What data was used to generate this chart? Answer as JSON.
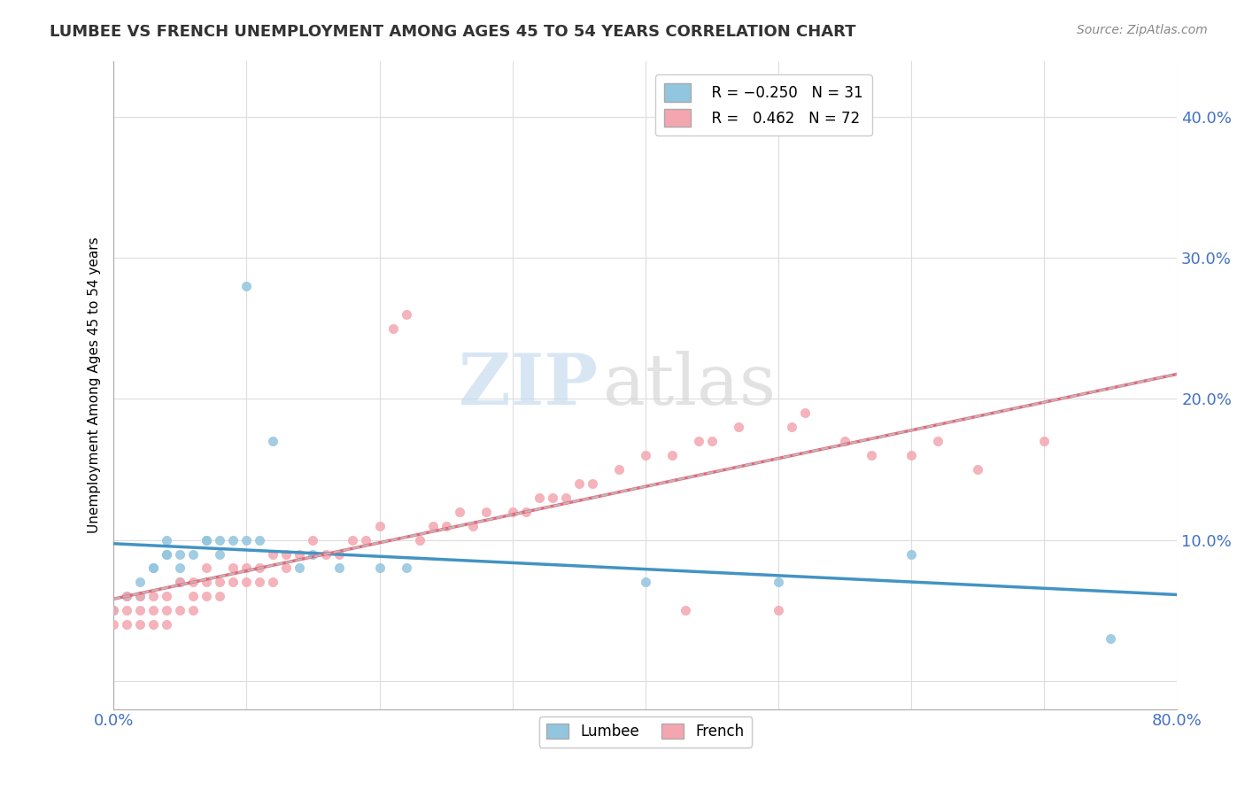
{
  "title": "LUMBEE VS FRENCH UNEMPLOYMENT AMONG AGES 45 TO 54 YEARS CORRELATION CHART",
  "source": "Source: ZipAtlas.com",
  "xlabel": "",
  "ylabel": "Unemployment Among Ages 45 to 54 years",
  "xlim": [
    0,
    0.8
  ],
  "ylim": [
    -0.02,
    0.44
  ],
  "xticks": [
    0.0,
    0.1,
    0.2,
    0.3,
    0.4,
    0.5,
    0.6,
    0.7,
    0.8
  ],
  "yticks": [
    0.0,
    0.1,
    0.2,
    0.3,
    0.4
  ],
  "lumbee_R": -0.25,
  "lumbee_N": 31,
  "french_R": 0.462,
  "french_N": 72,
  "lumbee_color": "#92C5DE",
  "french_color": "#F4A6B0",
  "lumbee_line_color": "#4393C3",
  "french_line_color": "#E8667A",
  "dashed_line_color": "#BBBBBB",
  "lumbee_x": [
    0.0,
    0.01,
    0.02,
    0.02,
    0.03,
    0.03,
    0.04,
    0.04,
    0.04,
    0.05,
    0.05,
    0.05,
    0.06,
    0.07,
    0.07,
    0.08,
    0.08,
    0.09,
    0.1,
    0.1,
    0.11,
    0.12,
    0.14,
    0.15,
    0.17,
    0.2,
    0.22,
    0.4,
    0.5,
    0.6,
    0.75
  ],
  "lumbee_y": [
    0.05,
    0.06,
    0.06,
    0.07,
    0.08,
    0.08,
    0.09,
    0.09,
    0.1,
    0.07,
    0.08,
    0.09,
    0.09,
    0.1,
    0.1,
    0.09,
    0.1,
    0.1,
    0.1,
    0.28,
    0.1,
    0.17,
    0.08,
    0.09,
    0.08,
    0.08,
    0.08,
    0.07,
    0.07,
    0.09,
    0.03
  ],
  "french_x": [
    0.0,
    0.0,
    0.01,
    0.01,
    0.01,
    0.02,
    0.02,
    0.02,
    0.03,
    0.03,
    0.03,
    0.04,
    0.04,
    0.04,
    0.05,
    0.05,
    0.06,
    0.06,
    0.06,
    0.07,
    0.07,
    0.07,
    0.08,
    0.08,
    0.09,
    0.09,
    0.1,
    0.1,
    0.11,
    0.11,
    0.12,
    0.12,
    0.13,
    0.13,
    0.14,
    0.15,
    0.16,
    0.17,
    0.18,
    0.19,
    0.2,
    0.21,
    0.22,
    0.23,
    0.24,
    0.25,
    0.26,
    0.27,
    0.28,
    0.3,
    0.31,
    0.32,
    0.33,
    0.34,
    0.35,
    0.36,
    0.38,
    0.4,
    0.42,
    0.43,
    0.44,
    0.45,
    0.47,
    0.5,
    0.51,
    0.52,
    0.55,
    0.57,
    0.6,
    0.62,
    0.65,
    0.7
  ],
  "french_y": [
    0.04,
    0.05,
    0.04,
    0.05,
    0.06,
    0.04,
    0.05,
    0.06,
    0.04,
    0.05,
    0.06,
    0.04,
    0.05,
    0.06,
    0.05,
    0.07,
    0.05,
    0.06,
    0.07,
    0.06,
    0.07,
    0.08,
    0.06,
    0.07,
    0.07,
    0.08,
    0.07,
    0.08,
    0.07,
    0.08,
    0.07,
    0.09,
    0.08,
    0.09,
    0.09,
    0.1,
    0.09,
    0.09,
    0.1,
    0.1,
    0.11,
    0.25,
    0.26,
    0.1,
    0.11,
    0.11,
    0.12,
    0.11,
    0.12,
    0.12,
    0.12,
    0.13,
    0.13,
    0.13,
    0.14,
    0.14,
    0.15,
    0.16,
    0.16,
    0.05,
    0.17,
    0.17,
    0.18,
    0.05,
    0.18,
    0.19,
    0.17,
    0.16,
    0.16,
    0.17,
    0.15,
    0.17
  ],
  "watermark_zip": "ZIP",
  "watermark_atlas": "atlas",
  "background_color": "#FFFFFF",
  "grid_color": "#DDDDDD"
}
